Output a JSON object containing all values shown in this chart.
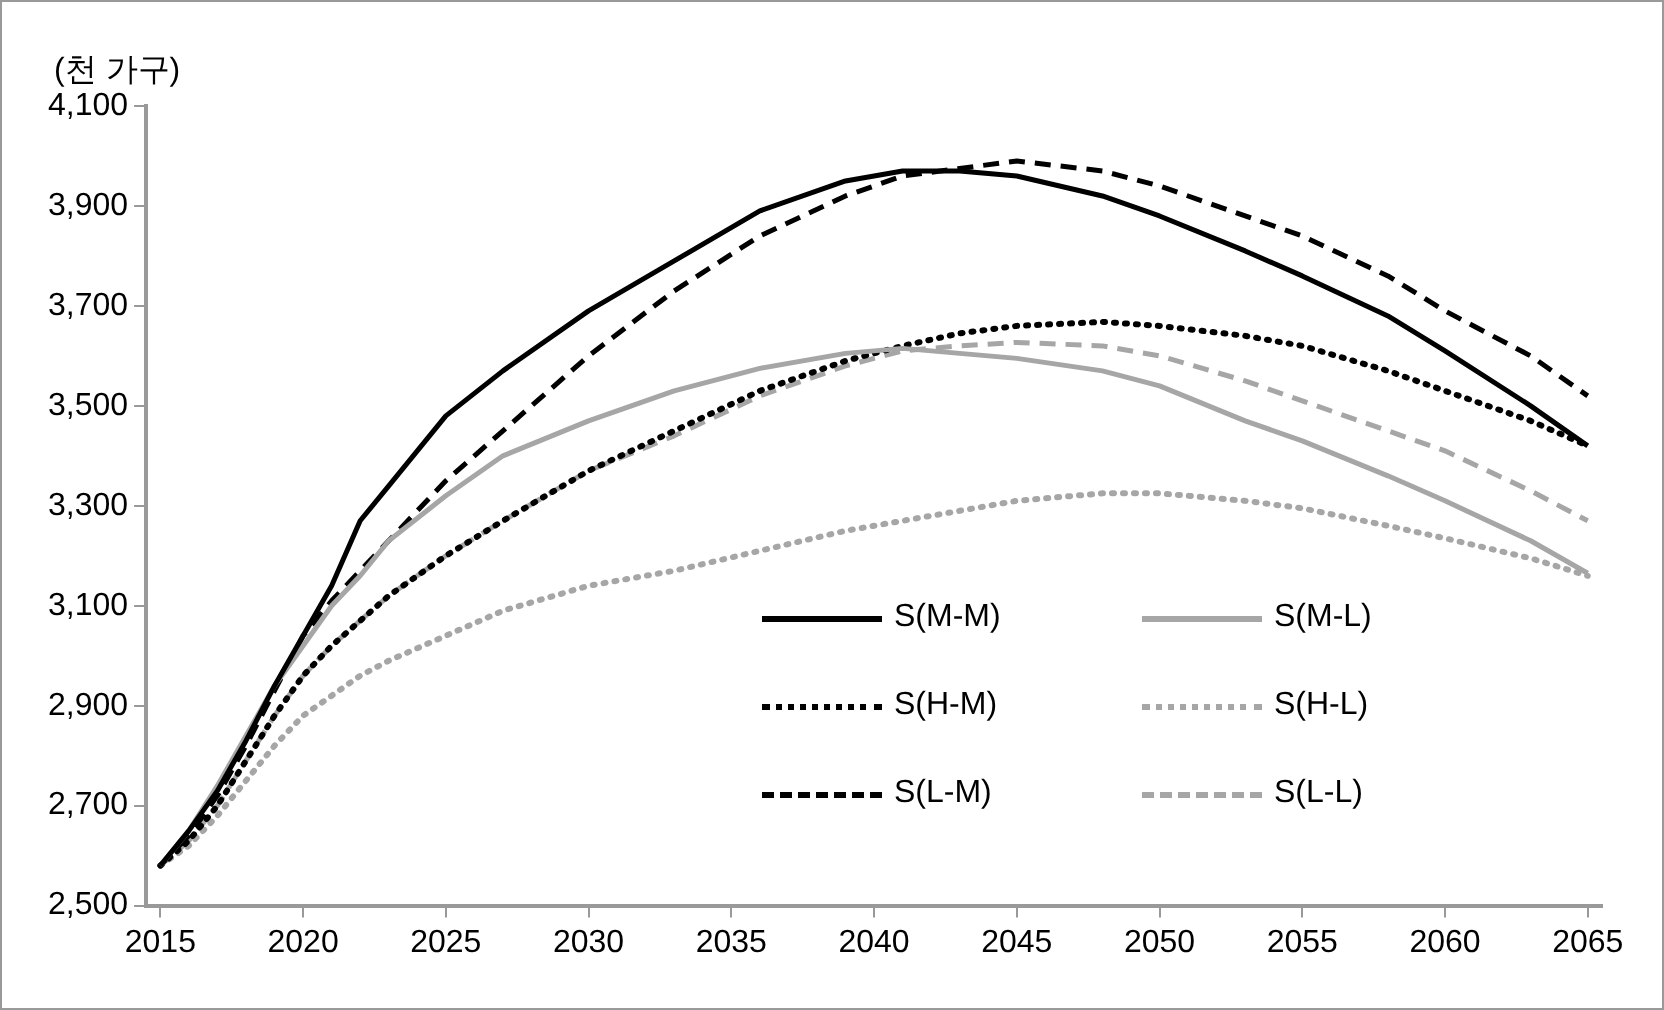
{
  "chart_data": {
    "type": "line",
    "ylabel": "(천 가구)",
    "x": [
      2015,
      2016,
      2017,
      2018,
      2019,
      2020,
      2021,
      2022,
      2023,
      2025,
      2027,
      2030,
      2033,
      2036,
      2039,
      2041,
      2043,
      2045,
      2048,
      2050,
      2053,
      2055,
      2058,
      2060,
      2063,
      2065
    ],
    "series": [
      {
        "name": "S(M-M)",
        "color": "#000000",
        "line_style": "solid",
        "values": [
          2580,
          2650,
          2730,
          2830,
          2940,
          3040,
          3140,
          3270,
          3340,
          3480,
          3570,
          3690,
          3790,
          3890,
          3950,
          3970,
          3970,
          3960,
          3920,
          3880,
          3810,
          3760,
          3680,
          3610,
          3500,
          3420
        ]
      },
      {
        "name": "S(M-L)",
        "color": "#a6a6a6",
        "line_style": "solid",
        "values": [
          2580,
          2650,
          2740,
          2840,
          2940,
          3020,
          3100,
          3160,
          3230,
          3320,
          3400,
          3470,
          3530,
          3575,
          3605,
          3615,
          3605,
          3595,
          3570,
          3540,
          3470,
          3430,
          3360,
          3310,
          3230,
          3165
        ]
      },
      {
        "name": "S(H-M)",
        "color": "#000000",
        "line_style": "dotted",
        "values": [
          2580,
          2630,
          2700,
          2790,
          2880,
          2960,
          3020,
          3070,
          3120,
          3200,
          3270,
          3370,
          3450,
          3530,
          3590,
          3620,
          3645,
          3660,
          3668,
          3660,
          3640,
          3620,
          3570,
          3530,
          3470,
          3420
        ]
      },
      {
        "name": "S(H-L)",
        "color": "#a6a6a6",
        "line_style": "dotted",
        "values": [
          2580,
          2620,
          2680,
          2750,
          2820,
          2880,
          2920,
          2960,
          2990,
          3040,
          3090,
          3140,
          3170,
          3210,
          3250,
          3270,
          3290,
          3310,
          3325,
          3325,
          3310,
          3295,
          3260,
          3235,
          3195,
          3160
        ]
      },
      {
        "name": "S(L-M)",
        "color": "#000000",
        "line_style": "dashed",
        "values": [
          2580,
          2640,
          2720,
          2820,
          2930,
          3040,
          3110,
          3170,
          3230,
          3350,
          3450,
          3600,
          3730,
          3840,
          3920,
          3960,
          3975,
          3990,
          3970,
          3940,
          3880,
          3840,
          3760,
          3690,
          3600,
          3520
        ]
      },
      {
        "name": "S(L-L)",
        "color": "#a6a6a6",
        "line_style": "dashed",
        "values": [
          2580,
          2630,
          2700,
          2790,
          2880,
          2960,
          3020,
          3070,
          3120,
          3200,
          3270,
          3370,
          3440,
          3520,
          3580,
          3610,
          3620,
          3627,
          3620,
          3600,
          3550,
          3510,
          3450,
          3410,
          3330,
          3270
        ]
      }
    ],
    "xlim": [
      2014.5,
      2065.5
    ],
    "xticks": [
      2015,
      2020,
      2025,
      2030,
      2035,
      2040,
      2045,
      2050,
      2055,
      2060,
      2065
    ],
    "ylim": [
      2500,
      4100
    ],
    "yticks": [
      {
        "value": 2500,
        "label": "2,500"
      },
      {
        "value": 2700,
        "label": "2,700"
      },
      {
        "value": 2900,
        "label": "2,900"
      },
      {
        "value": 3100,
        "label": "3,100"
      },
      {
        "value": 3300,
        "label": "3,300"
      },
      {
        "value": 3500,
        "label": "3,500"
      },
      {
        "value": 3700,
        "label": "3,700"
      },
      {
        "value": 3900,
        "label": "3,900"
      },
      {
        "value": 4100,
        "label": "4,100"
      }
    ],
    "grid": false,
    "legend": "bottom right"
  }
}
